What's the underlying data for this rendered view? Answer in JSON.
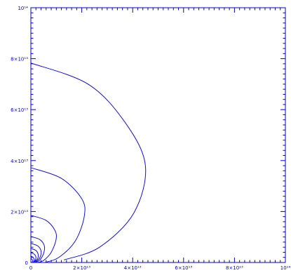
{
  "chart_data": {
    "type": "line",
    "title": "",
    "xlabel": "",
    "ylabel": "",
    "xlim": [
      0,
      100000000000000.0
    ],
    "ylim": [
      0,
      100000000000000.0
    ],
    "x_scale": "linear",
    "y_scale": "linear",
    "grid": false,
    "legend": "none",
    "colors": {
      "axes": "#0000cc",
      "curves": "#1010e0",
      "background": "#ffffff"
    },
    "x_ticks": [
      {
        "value": 0,
        "label": "0"
      },
      {
        "value": 20000000000000.0,
        "label": "2×10¹³"
      },
      {
        "value": 40000000000000.0,
        "label": "4×10¹³"
      },
      {
        "value": 60000000000000.0,
        "label": "6×10¹³"
      },
      {
        "value": 80000000000000.0,
        "label": "8×10¹³"
      },
      {
        "value": 100000000000000.0,
        "label": "10¹⁴"
      }
    ],
    "y_ticks": [
      {
        "value": 0,
        "label": "0"
      },
      {
        "value": 20000000000000.0,
        "label": "2×10¹³"
      },
      {
        "value": 40000000000000.0,
        "label": "4×10¹³"
      },
      {
        "value": 60000000000000.0,
        "label": "6×10¹³"
      },
      {
        "value": 80000000000000.0,
        "label": "8×10¹³"
      },
      {
        "value": 100000000000000.0,
        "label": "10¹⁴"
      }
    ],
    "series": [
      {
        "points": [
          [
            0,
            78300000000000.0
          ],
          [
            22500000000000.0,
            70000000000000.0
          ],
          [
            37000000000000.0,
            55000000000000.0
          ],
          [
            45000000000000.0,
            38000000000000.0
          ],
          [
            40500000000000.0,
            19500000000000.0
          ],
          [
            27000000000000.0,
            6000000000000.0
          ],
          [
            13000000000000.0,
            1000000000000.0
          ]
        ]
      },
      {
        "points": [
          [
            0,
            37200000000000.0
          ],
          [
            12000000000000.0,
            33000000000000.0
          ],
          [
            20000000000000.0,
            25000000000000.0
          ],
          [
            21000000000000.0,
            18200000000000.0
          ],
          [
            17500000000000.0,
            8500000000000.0
          ],
          [
            11000000000000.0,
            2000000000000.0
          ],
          [
            5500000000000.0,
            0
          ]
        ]
      },
      {
        "points": [
          [
            0,
            18500000000000.0
          ],
          [
            6000000000000.0,
            16500000000000.0
          ],
          [
            9500000000000.0,
            12500000000000.0
          ],
          [
            9900000000000.0,
            9000000000000.0
          ],
          [
            8000000000000.0,
            4000000000000.0
          ],
          [
            5000000000000.0,
            800000000000.0
          ],
          [
            2500000000000.0,
            0
          ]
        ]
      },
      {
        "points": [
          [
            0,
            10200000000000.0
          ],
          [
            3500000000000.0,
            9000000000000.0
          ],
          [
            5300000000000.0,
            6500000000000.0
          ],
          [
            5000000000000.0,
            3500000000000.0
          ],
          [
            3500000000000.0,
            1000000000000.0
          ],
          [
            1800000000000.0,
            0
          ]
        ]
      },
      {
        "points": [
          [
            0,
            7500000000000.0
          ],
          [
            2700000000000.0,
            6500000000000.0
          ],
          [
            4000000000000.0,
            4500000000000.0
          ],
          [
            3600000000000.0,
            2000000000000.0
          ],
          [
            2000000000000.0,
            300000000000.0
          ],
          [
            1200000000000.0,
            0
          ]
        ]
      },
      {
        "points": [
          [
            0,
            5500000000000.0
          ],
          [
            2000000000000.0,
            4700000000000.0
          ],
          [
            2900000000000.0,
            3000000000000.0
          ],
          [
            2500000000000.0,
            1200000000000.0
          ],
          [
            1000000000000.0,
            0
          ]
        ]
      },
      {
        "points": [
          [
            0,
            3800000000000.0
          ],
          [
            1400000000000.0,
            3200000000000.0
          ],
          [
            2000000000000.0,
            2000000000000.0
          ],
          [
            1600000000000.0,
            600000000000.0
          ],
          [
            700000000000.0,
            0
          ]
        ]
      },
      {
        "points": [
          [
            0,
            2500000000000.0
          ],
          [
            900000000000.0,
            2000000000000.0
          ],
          [
            1300000000000.0,
            1100000000000.0
          ],
          [
            1000000000000.0,
            200000000000.0
          ],
          [
            400000000000.0,
            0
          ]
        ]
      },
      {
        "points": [
          [
            0,
            1500000000000.0
          ],
          [
            500000000000.0,
            1200000000000.0
          ],
          [
            750000000000.0,
            600000000000.0
          ],
          [
            300000000000.0,
            0
          ]
        ]
      }
    ]
  }
}
